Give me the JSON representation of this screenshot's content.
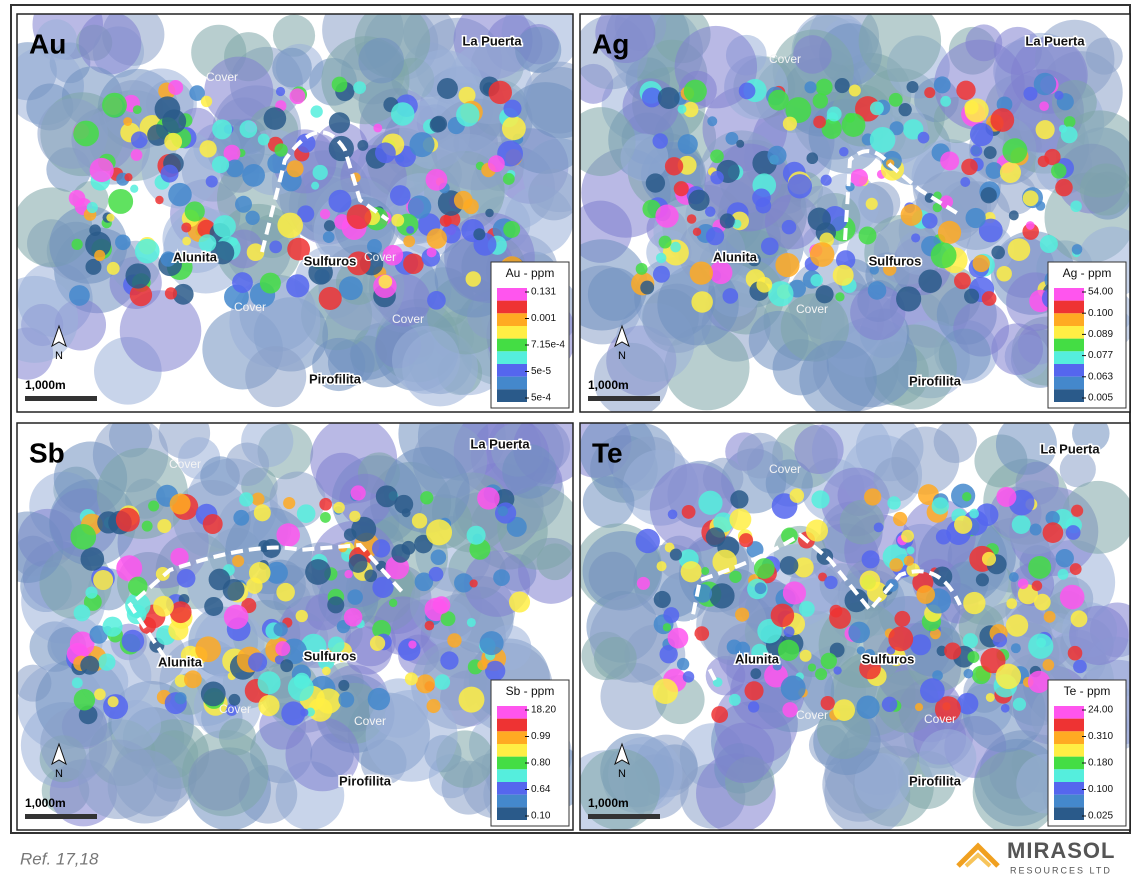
{
  "panels": [
    {
      "element": "Au",
      "places": [
        "La Puerta",
        "Cover",
        "Alunita",
        "Sulfuros",
        "Cover",
        "Cover",
        "Cover",
        "Pirofilita"
      ],
      "legend": {
        "title": "Au - ppm",
        "labels": [
          "0.131",
          "0.001",
          "7.15e-4",
          "5e-5",
          "5e-4"
        ]
      }
    },
    {
      "element": "Ag",
      "places": [
        "La Puerta",
        "Cover",
        "Alunita",
        "Sulfuros",
        "Cover",
        "Pirofilita"
      ],
      "legend": {
        "title": "Ag - ppm",
        "labels": [
          "54.00",
          "0.100",
          "0.089",
          "0.077",
          "0.063",
          "0.005"
        ]
      }
    },
    {
      "element": "Sb",
      "places": [
        "La Puerta",
        "Cover",
        "Alunita",
        "Sulfuros",
        "Cover",
        "Cover",
        "Pirofilita"
      ],
      "legend": {
        "title": "Sb - ppm",
        "labels": [
          "18.20",
          "0.99",
          "0.80",
          "0.64",
          "0.10"
        ]
      }
    },
    {
      "element": "Te",
      "places": [
        "La Puerta",
        "Cover",
        "Alunita",
        "Sulfuros",
        "Cover",
        "Cover",
        "Pirofilita"
      ],
      "legend": {
        "title": "Te - ppm",
        "labels": [
          "24.00",
          "0.310",
          "0.180",
          "0.100",
          "0.025"
        ]
      }
    }
  ],
  "north": "N",
  "scale": "1,000m",
  "footer": {
    "reference": "Ref. 17,18",
    "logo_name": "MIRASOL",
    "logo_sub": "RESOURCES LTD"
  }
}
